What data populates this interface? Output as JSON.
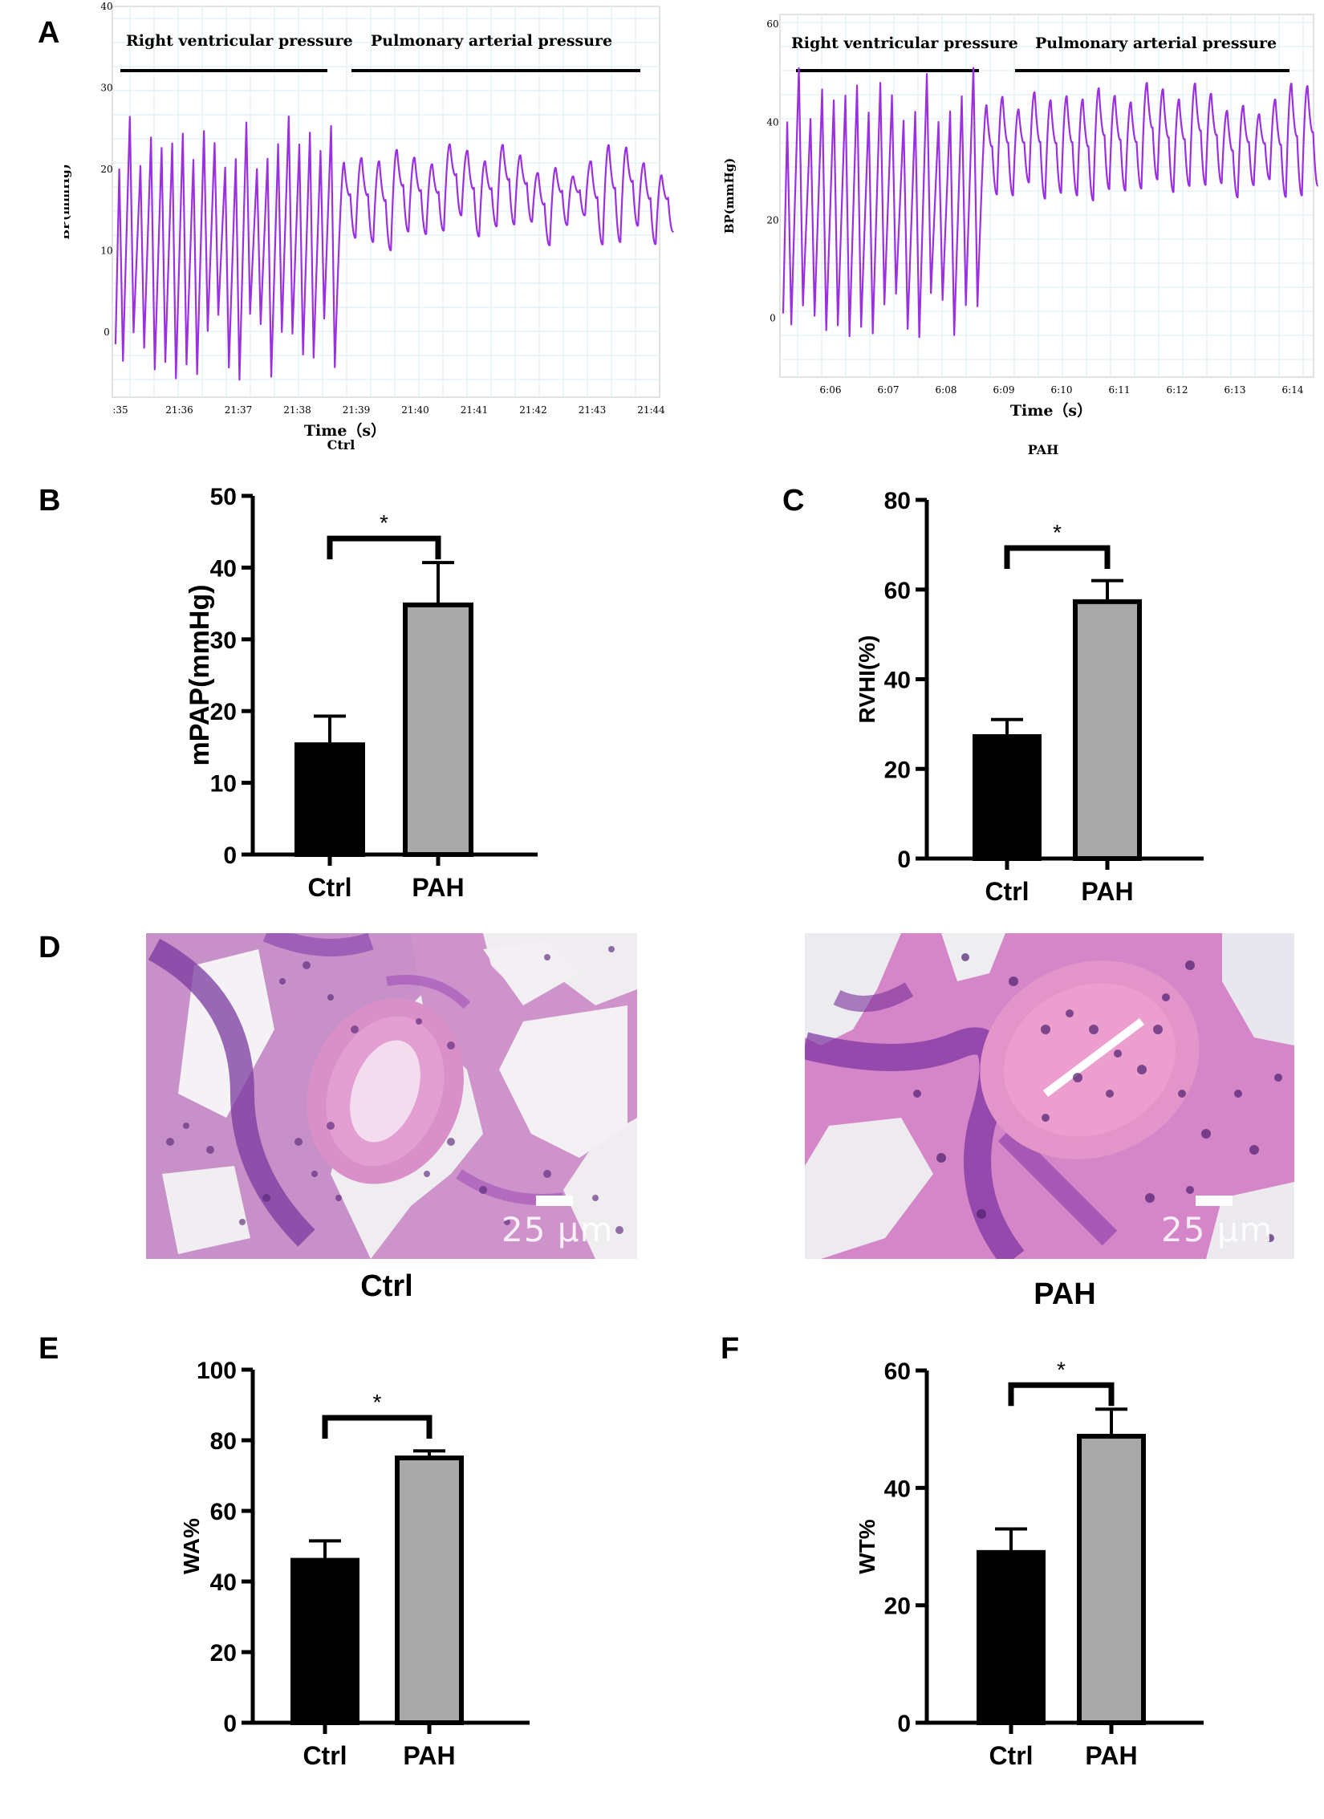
{
  "panel_labels": {
    "A": "A",
    "B": "B",
    "C": "C",
    "D": "D",
    "E": "E",
    "F": "F"
  },
  "chart_data": [
    {
      "id": "A-ctrl",
      "type": "line",
      "title": "Ctrl",
      "xlabel": "Time（s）",
      "ylabel": "BP(mmHg)",
      "yticks": [
        "0",
        "10",
        "20",
        "30",
        "40"
      ],
      "ylim": [
        -8,
        40
      ],
      "xticks": [
        ":35",
        "21:36",
        "21:37",
        "21:38",
        "21:39",
        "21:40",
        "21:41",
        "21:42",
        "21:43",
        "21:44"
      ],
      "segments": [
        {
          "label": "Right ventricular pressure",
          "systolic_approx": [
            20,
            27
          ],
          "diastolic_approx": [
            -6,
            3
          ]
        },
        {
          "label": "Pulmonary arterial pressure",
          "systolic_approx": [
            18,
            23
          ],
          "diastolic_approx": [
            9,
            14
          ]
        }
      ],
      "line_color": "#9b30e0"
    },
    {
      "id": "A-pah",
      "type": "line",
      "title": "PAH",
      "xlabel": "Time（s）",
      "ylabel": "BP(mmHg)",
      "yticks": [
        "0",
        "20",
        "40",
        "60"
      ],
      "ylim": [
        -12,
        62
      ],
      "xticks": [
        "6:06",
        "6:07",
        "6:08",
        "6:09",
        "6:10",
        "6:11",
        "6:12",
        "6:13",
        "6:14"
      ],
      "segments": [
        {
          "label": "Right ventricular pressure",
          "systolic_approx": [
            40,
            52
          ],
          "diastolic_approx": [
            -4,
            6
          ]
        },
        {
          "label": "Pulmonary arterial pressure",
          "systolic_approx": [
            40,
            48
          ],
          "diastolic_approx": [
            23,
            28
          ]
        }
      ],
      "line_color": "#9b30e0"
    },
    {
      "id": "B",
      "type": "bar",
      "categories": [
        "Ctrl",
        "PAH"
      ],
      "values": [
        15.3,
        34.8
      ],
      "errors": [
        4.0,
        5.9
      ],
      "ylabel": "mPAP(mmHg)",
      "ylim": [
        0,
        50
      ],
      "yticks": [
        "0",
        "10",
        "20",
        "30",
        "40",
        "50"
      ],
      "significance": "*",
      "colors": [
        "#000000",
        "#a9a9a9"
      ]
    },
    {
      "id": "C",
      "type": "bar",
      "categories": [
        "Ctrl",
        "PAH"
      ],
      "values": [
        27.2,
        57.3
      ],
      "errors": [
        3.8,
        4.7
      ],
      "ylabel": "RVHI(%)",
      "ylim": [
        0,
        80
      ],
      "yticks": [
        "0",
        "20",
        "40",
        "60",
        "80"
      ],
      "significance": "*",
      "colors": [
        "#000000",
        "#a9a9a9"
      ]
    },
    {
      "id": "E",
      "type": "bar",
      "categories": [
        "Ctrl",
        "PAH"
      ],
      "values": [
        46.0,
        75.0
      ],
      "errors": [
        5.5,
        2.0
      ],
      "ylabel": "WA%",
      "ylim": [
        0,
        100
      ],
      "yticks": [
        "0",
        "20",
        "40",
        "60",
        "80",
        "100"
      ],
      "significance": "*",
      "colors": [
        "#000000",
        "#a9a9a9"
      ]
    },
    {
      "id": "F",
      "type": "bar",
      "categories": [
        "Ctrl",
        "PAH"
      ],
      "values": [
        29.0,
        48.8
      ],
      "errors": [
        4.0,
        4.6
      ],
      "ylabel": "WT%",
      "ylim": [
        0,
        60
      ],
      "yticks": [
        "0",
        "20",
        "40",
        "60"
      ],
      "significance": "*",
      "colors": [
        "#000000",
        "#a9a9a9"
      ]
    }
  ],
  "histology": {
    "ctrl": {
      "caption": "Ctrl",
      "scale_label": "25 μm"
    },
    "pah": {
      "caption": "PAH",
      "scale_label": "25 μm"
    }
  }
}
